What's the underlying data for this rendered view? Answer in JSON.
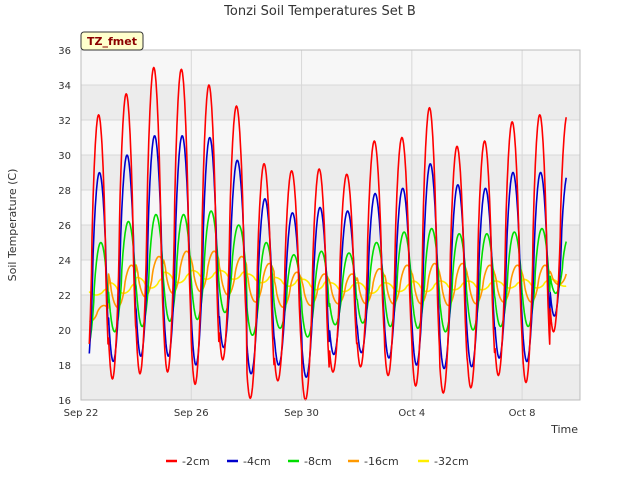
{
  "chart_data": {
    "type": "line",
    "title": "Tonzi Soil Temperatures Set B",
    "xlabel": "Time",
    "ylabel": "Soil Temperature (C)",
    "site_badge": "TZ_fmet",
    "ylim": [
      16,
      36
    ],
    "yticks": [
      16,
      18,
      20,
      22,
      24,
      26,
      28,
      30,
      32,
      34,
      36
    ],
    "xlim_days": [
      0,
      18.1
    ],
    "xticks": [
      {
        "day": 0,
        "label": "Sep 22"
      },
      {
        "day": 4,
        "label": "Sep 26"
      },
      {
        "day": 8,
        "label": "Sep 30"
      },
      {
        "day": 12,
        "label": "Oct 4"
      },
      {
        "day": 16,
        "label": "Oct 8"
      }
    ],
    "start_day": 0.3,
    "end_day": 17.6,
    "grid": true,
    "band_background": true,
    "legend_position": "bottom",
    "series": [
      {
        "name": "-2cm",
        "color": "#ff0000",
        "peak_phase": 0.64,
        "daily_max": [
          32.3,
          33.5,
          35.0,
          34.9,
          34.0,
          32.8,
          29.5,
          29.1,
          29.2,
          28.9,
          30.8,
          31.0,
          32.7,
          30.5,
          30.8,
          31.9,
          32.3,
          32.3
        ],
        "daily_min": [
          16.2,
          17.2,
          17.5,
          17.6,
          16.9,
          18.3,
          16.1,
          17.1,
          16.0,
          17.6,
          17.9,
          17.4,
          16.8,
          16.4,
          16.7,
          17.4,
          17.0,
          19.9
        ]
      },
      {
        "name": "-4cm",
        "color": "#0000cc",
        "peak_phase": 0.67,
        "daily_max": [
          29.0,
          30.0,
          31.1,
          31.1,
          31.0,
          29.7,
          27.5,
          26.7,
          27.0,
          26.8,
          27.8,
          28.1,
          29.5,
          28.3,
          28.1,
          29.0,
          29.0,
          29.0
        ],
        "daily_min": [
          17.2,
          18.2,
          18.5,
          18.5,
          18.0,
          19.0,
          17.5,
          18.0,
          17.3,
          18.6,
          18.7,
          18.4,
          18.0,
          17.8,
          17.9,
          18.4,
          18.2,
          20.8
        ]
      },
      {
        "name": "-8cm",
        "color": "#00dd00",
        "peak_phase": 0.72,
        "daily_max": [
          25.0,
          26.2,
          26.6,
          26.6,
          26.8,
          26.0,
          25.0,
          24.3,
          24.5,
          24.4,
          25.0,
          25.6,
          25.8,
          25.5,
          25.5,
          25.6,
          25.8,
          25.4
        ],
        "daily_min": [
          18.9,
          19.9,
          20.2,
          20.5,
          20.6,
          21.0,
          19.7,
          20.1,
          19.6,
          20.3,
          20.4,
          20.2,
          20.1,
          19.9,
          20.0,
          20.2,
          20.2,
          22.1
        ]
      },
      {
        "name": "-16cm",
        "color": "#ff9900",
        "peak_phase": 0.83,
        "daily_max": [
          21.4,
          23.7,
          24.2,
          24.5,
          24.5,
          24.2,
          23.8,
          23.3,
          23.2,
          23.2,
          23.5,
          23.7,
          23.8,
          23.8,
          23.7,
          23.7,
          23.7,
          23.6
        ],
        "daily_min": [
          20.5,
          21.3,
          21.9,
          22.1,
          22.2,
          22.0,
          21.6,
          21.3,
          21.4,
          21.5,
          21.5,
          21.5,
          21.5,
          21.4,
          21.5,
          21.6,
          21.6,
          22.6
        ]
      },
      {
        "name": "-32cm",
        "color": "#ffee00",
        "peak_phase": 0.05,
        "daily_max": [
          22.4,
          22.7,
          23.0,
          23.3,
          23.4,
          23.4,
          23.2,
          23.0,
          22.9,
          22.7,
          22.7,
          22.7,
          22.8,
          22.8,
          22.8,
          22.8,
          22.9,
          22.9
        ],
        "daily_min": [
          22.0,
          22.1,
          22.4,
          22.7,
          22.9,
          22.9,
          22.7,
          22.5,
          22.3,
          22.2,
          22.1,
          22.2,
          22.2,
          22.3,
          22.3,
          22.4,
          22.4,
          22.5
        ]
      }
    ]
  },
  "colors": {
    "band_a": "#ececec",
    "band_b": "#f7f7f7",
    "grid": "#d8d8d8",
    "axis": "#bdbdbd",
    "badge_fill": "#ffffcc"
  }
}
